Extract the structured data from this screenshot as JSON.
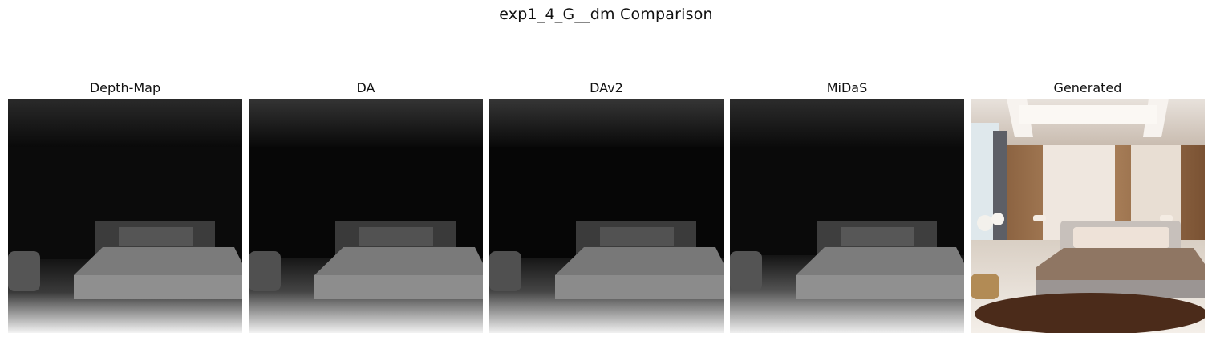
{
  "figure": {
    "title": "exp1_4_G__dm Comparison",
    "panels": [
      {
        "id": "depth-map",
        "title": "Depth-Map",
        "kind": "depth"
      },
      {
        "id": "da",
        "title": "DA",
        "kind": "depth"
      },
      {
        "id": "dav2",
        "title": "DAv2",
        "kind": "depth"
      },
      {
        "id": "midas",
        "title": "MiDaS",
        "kind": "depth"
      },
      {
        "id": "generated",
        "title": "Generated",
        "kind": "photo"
      }
    ]
  },
  "colors": {
    "background": "#ffffff",
    "depth_far": "#080808",
    "depth_near": "#f2f2f2",
    "bed_gray": "#8a8a8a",
    "wood": "#9a6b45",
    "rug": "#4a2a18"
  }
}
